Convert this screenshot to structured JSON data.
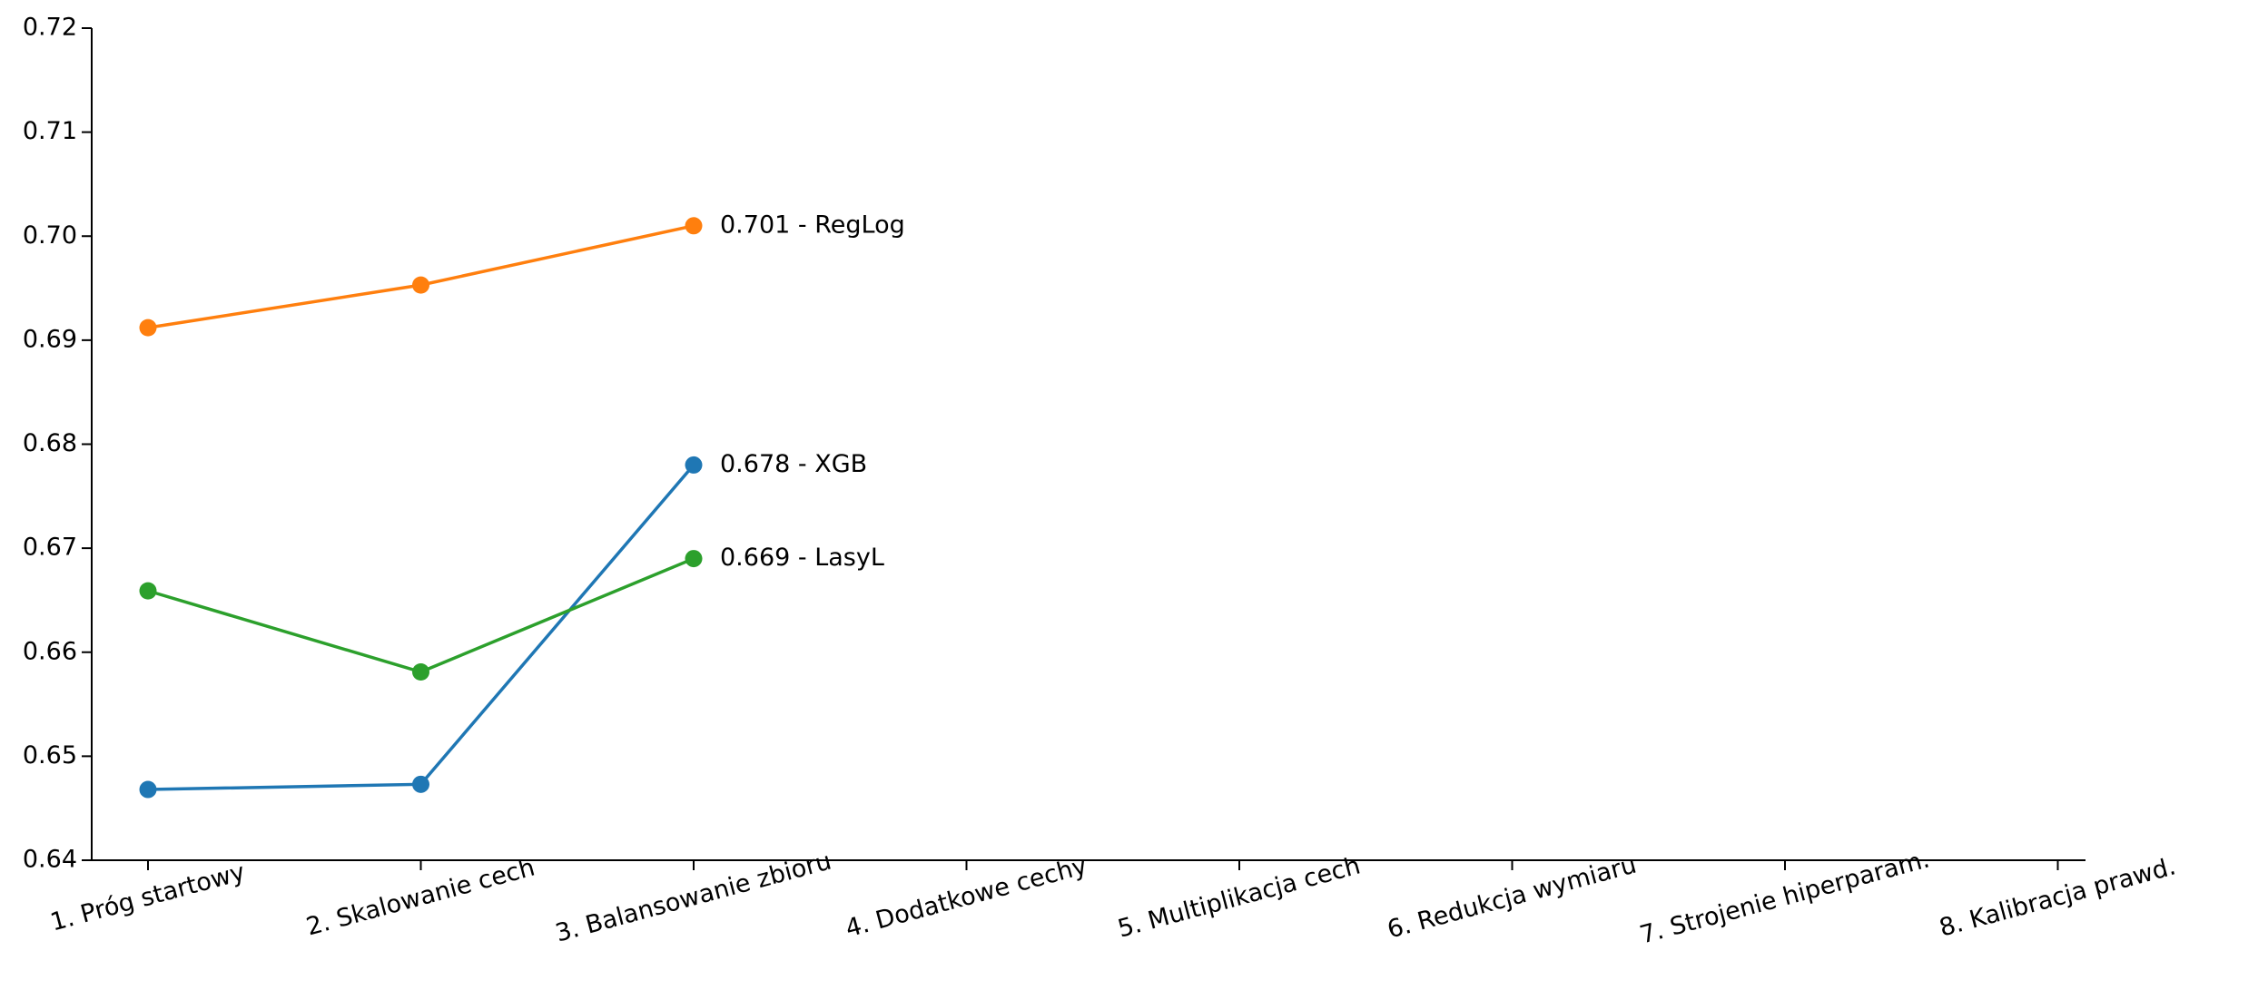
{
  "chart_data": {
    "type": "line",
    "categories": [
      "1. Próg startowy",
      "2. Skalowanie cech",
      "3. Balansowanie zbioru",
      "4. Dodatkowe cechy",
      "5. Multiplikacja cech",
      "6. Redukcja wymiaru",
      "7. Strojenie hiperparam.",
      "8. Kalibracja prawd."
    ],
    "series": [
      {
        "name": "RegLog",
        "color": "#ff7f0e",
        "values": [
          0.6912,
          0.6953,
          0.701,
          null,
          null,
          null,
          null,
          null
        ],
        "value_labels": [
          null,
          null,
          "0.701 - RegLog",
          null,
          null,
          null,
          null,
          null
        ]
      },
      {
        "name": "XGB",
        "color": "#1f77b4",
        "values": [
          0.6468,
          0.6473,
          0.678,
          null,
          null,
          null,
          null,
          null
        ],
        "value_labels": [
          null,
          null,
          "0.678 - XGB",
          null,
          null,
          null,
          null,
          null
        ]
      },
      {
        "name": "LasyL",
        "color": "#2ca02c",
        "values": [
          0.6659,
          0.6581,
          0.669,
          null,
          null,
          null,
          null,
          null
        ],
        "value_labels": [
          null,
          null,
          "0.669 - LasyL",
          null,
          null,
          null,
          null,
          null
        ]
      }
    ],
    "ylim": [
      0.64,
      0.72
    ],
    "yticks": [
      0.64,
      0.65,
      0.66,
      0.67,
      0.68,
      0.69,
      0.7,
      0.71,
      0.72
    ],
    "grid": false
  }
}
